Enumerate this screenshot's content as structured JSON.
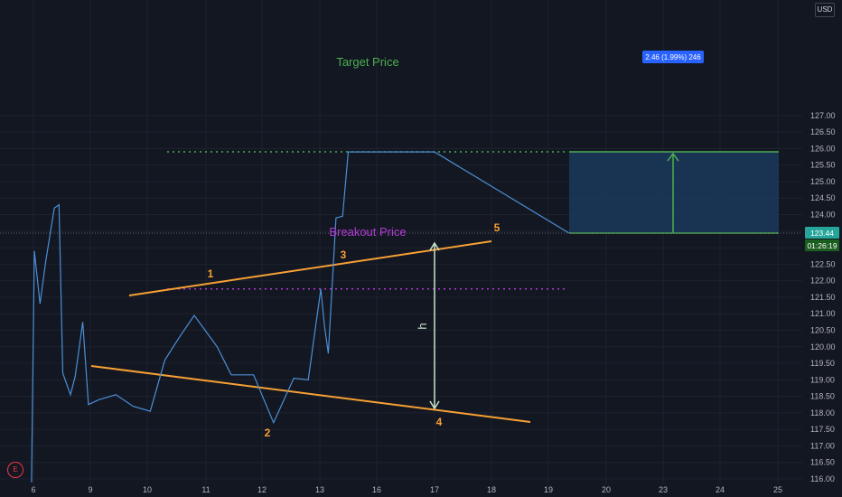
{
  "currency_button": "USD",
  "earnings_badge": "E",
  "colors": {
    "background": "#131722",
    "price_line": "#4b8fd6",
    "trendline": "#f7a034",
    "target_line": "#4caf50",
    "breakout_line": "#b33ad6",
    "target_box": "#1b3a5c",
    "height_arrow": "#c8e6c9"
  },
  "chart_data": {
    "type": "line",
    "x_ticks": [
      "6",
      "9",
      "10",
      "11",
      "12",
      "13",
      "16",
      "17",
      "18",
      "19",
      "20",
      "23",
      "24",
      "25"
    ],
    "y_ticks": [
      116.0,
      116.5,
      117.0,
      117.5,
      118.0,
      118.5,
      119.0,
      119.5,
      120.0,
      120.5,
      121.0,
      121.5,
      122.0,
      122.5,
      123.0,
      123.5,
      124.0,
      124.5,
      125.0,
      125.5,
      126.0,
      126.5,
      127.0
    ],
    "ylim": [
      116.0,
      127.4
    ],
    "series": [
      {
        "x": [
          5.9,
          6.05,
          6.35,
          6.65,
          7.1,
          7.35,
          7.55,
          7.95,
          8.2,
          8.6,
          8.9,
          9.15,
          9.45,
          9.75,
          10.05,
          10.3,
          10.55,
          10.8,
          11.2,
          11.45,
          11.85,
          12.2,
          12.55,
          12.8,
          13.05,
          13.25,
          13.45,
          13.85,
          14.2,
          14.5,
          14.8,
          15.0,
          15.2,
          15.45,
          15.7,
          16.0,
          16.3,
          16.5,
          16.75,
          17.0
        ],
        "values": [
          115.9,
          122.9,
          121.3,
          122.6,
          124.2,
          124.3,
          119.2,
          118.55,
          119.1,
          120.75,
          118.25,
          118.4,
          118.55,
          118.2,
          118.05,
          119.6,
          120.3,
          120.95,
          120.0,
          119.15,
          119.15,
          117.7,
          119.05,
          119.0,
          121.75,
          120.6,
          119.8,
          123.9,
          123.95,
          125.9,
          125.9,
          125.9,
          125.9,
          125.9,
          125.9,
          125.9,
          125.9,
          125.9,
          125.9,
          125.9
        ]
      }
    ]
  },
  "annotations": {
    "target_label": "Target Price",
    "breakout_label": "Breakout Price",
    "height_label": "h",
    "points": [
      "1",
      "2",
      "3",
      "4",
      "5"
    ],
    "measure_label": "2.46 (1.99%) 246",
    "current_price": "123.44",
    "countdown": "01:26:19"
  }
}
